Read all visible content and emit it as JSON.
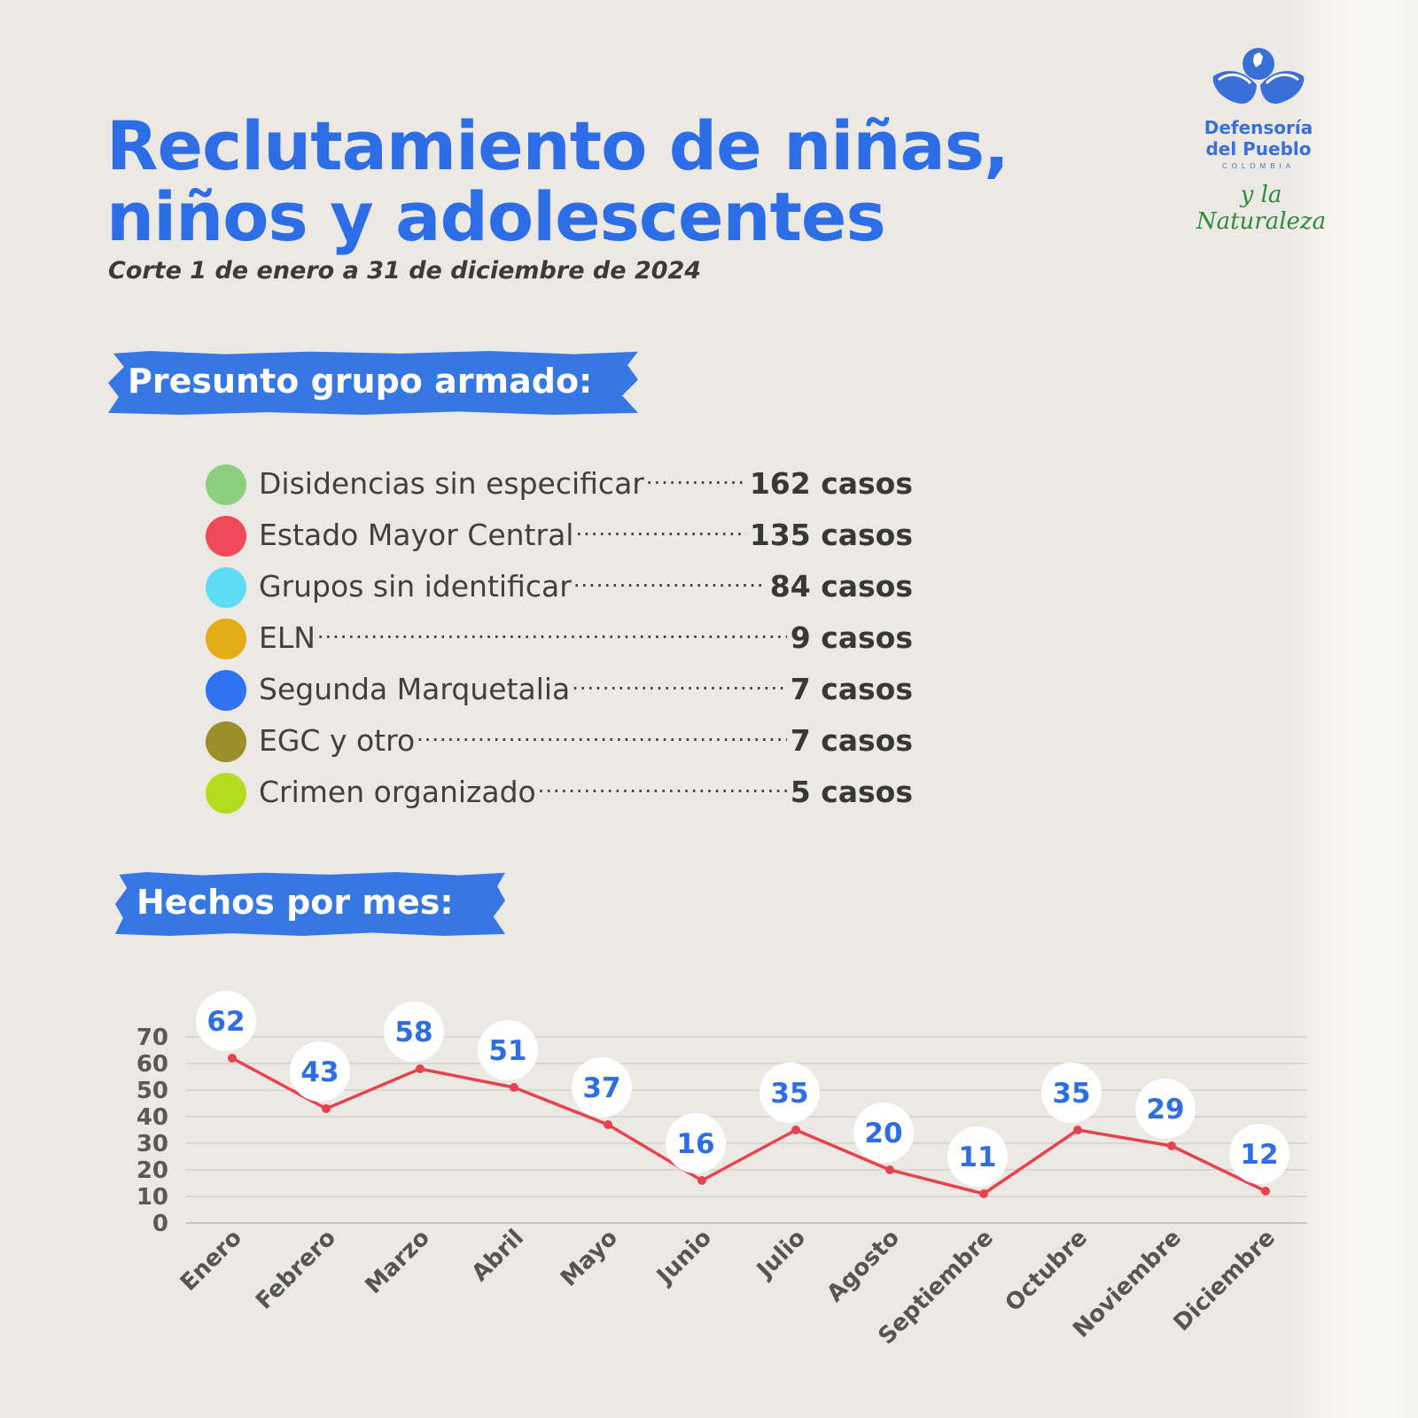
{
  "header": {
    "title_line1": "Reclutamiento de niñas,",
    "title_line2": "niños y adolescentes",
    "subtitle": "Corte 1 de enero a 31 de diciembre de 2024"
  },
  "logo": {
    "name_line1": "Defensoría",
    "name_line2": "del Pueblo",
    "country": "COLOMBIA",
    "tagline": "y la Naturaleza",
    "color": "#3a6fd8"
  },
  "groups_section": {
    "heading": "Presunto grupo armado:",
    "items": [
      {
        "name": "Disidencias sin especificar",
        "value": "162 casos",
        "color": "#8ccf7e"
      },
      {
        "name": "Estado Mayor Central",
        "value": "135 casos",
        "color": "#f04a5a"
      },
      {
        "name": "Grupos sin identificar",
        "value": "84 casos",
        "color": "#5fdcf5"
      },
      {
        "name": "ELN",
        "value": "9 casos",
        "color": "#e2ad16"
      },
      {
        "name": "Segunda Marquetalia",
        "value": "7 casos",
        "color": "#2f73f0"
      },
      {
        "name": "EGC y otro",
        "value": "7 casos",
        "color": "#9a8f2a"
      },
      {
        "name": "Crimen organizado",
        "value": "5 casos",
        "color": "#b3dc21"
      }
    ]
  },
  "monthly_section": {
    "heading": "Hechos por mes:"
  },
  "chart_data": {
    "type": "line",
    "categories": [
      "Enero",
      "Febrero",
      "Marzo",
      "Abril",
      "Mayo",
      "Junio",
      "Julio",
      "Agosto",
      "Septiembre",
      "Octubre",
      "Noviembre",
      "Diciembre"
    ],
    "values": [
      62,
      43,
      58,
      51,
      37,
      16,
      35,
      20,
      11,
      35,
      29,
      12
    ],
    "ylim": [
      0,
      70
    ],
    "yticks": [
      0,
      10,
      20,
      30,
      40,
      50,
      60,
      70
    ],
    "grid": true,
    "data_labels": true,
    "line_color": "#e8424f",
    "label_color": "#2d6ee6"
  }
}
